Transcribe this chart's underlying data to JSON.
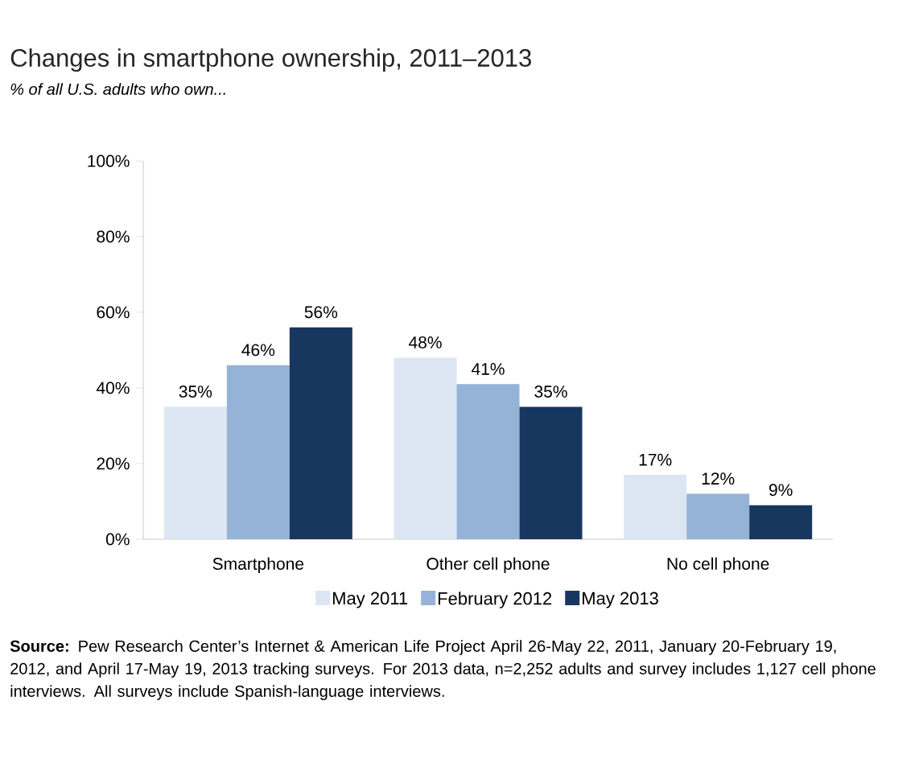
{
  "chart_data": {
    "type": "bar",
    "title": "Changes in smartphone ownership, 2011–2013",
    "subtitle": "% of all U.S. adults who own...",
    "categories": [
      "Smartphone",
      "Other cell phone",
      "No cell phone"
    ],
    "series": [
      {
        "name": "May 2011",
        "color": "#dce6f2",
        "values": [
          35,
          48,
          17
        ],
        "value_labels": [
          "35%",
          "48%",
          "17%"
        ]
      },
      {
        "name": "February 2012",
        "color": "#95b3d7",
        "values": [
          46,
          41,
          12
        ],
        "value_labels": [
          "46%",
          "41%",
          "12%"
        ]
      },
      {
        "name": "May 2013",
        "color": "#17375e",
        "values": [
          56,
          35,
          9
        ],
        "value_labels": [
          "56%",
          "35%",
          "9%"
        ]
      }
    ],
    "ylim": [
      0,
      100
    ],
    "yticks": [
      {
        "value": 0,
        "label": "0%"
      },
      {
        "value": 20,
        "label": "20%"
      },
      {
        "value": 40,
        "label": "40%"
      },
      {
        "value": 60,
        "label": "60%"
      },
      {
        "value": 80,
        "label": "80%"
      },
      {
        "value": 100,
        "label": "100%"
      }
    ],
    "grid": false,
    "legend": "bottom",
    "annotations": [
      "**Source:** Pew Research Center’s Internet & American Life Project April 26-May 22, 2011, January 20-February 19, 2012, and April 17-May 19, 2013 tracking surveys. For 2013 data, n=2,252 adults and survey includes 1,127 cell phone interviews. All surveys include Spanish-language interviews."
    ]
  }
}
